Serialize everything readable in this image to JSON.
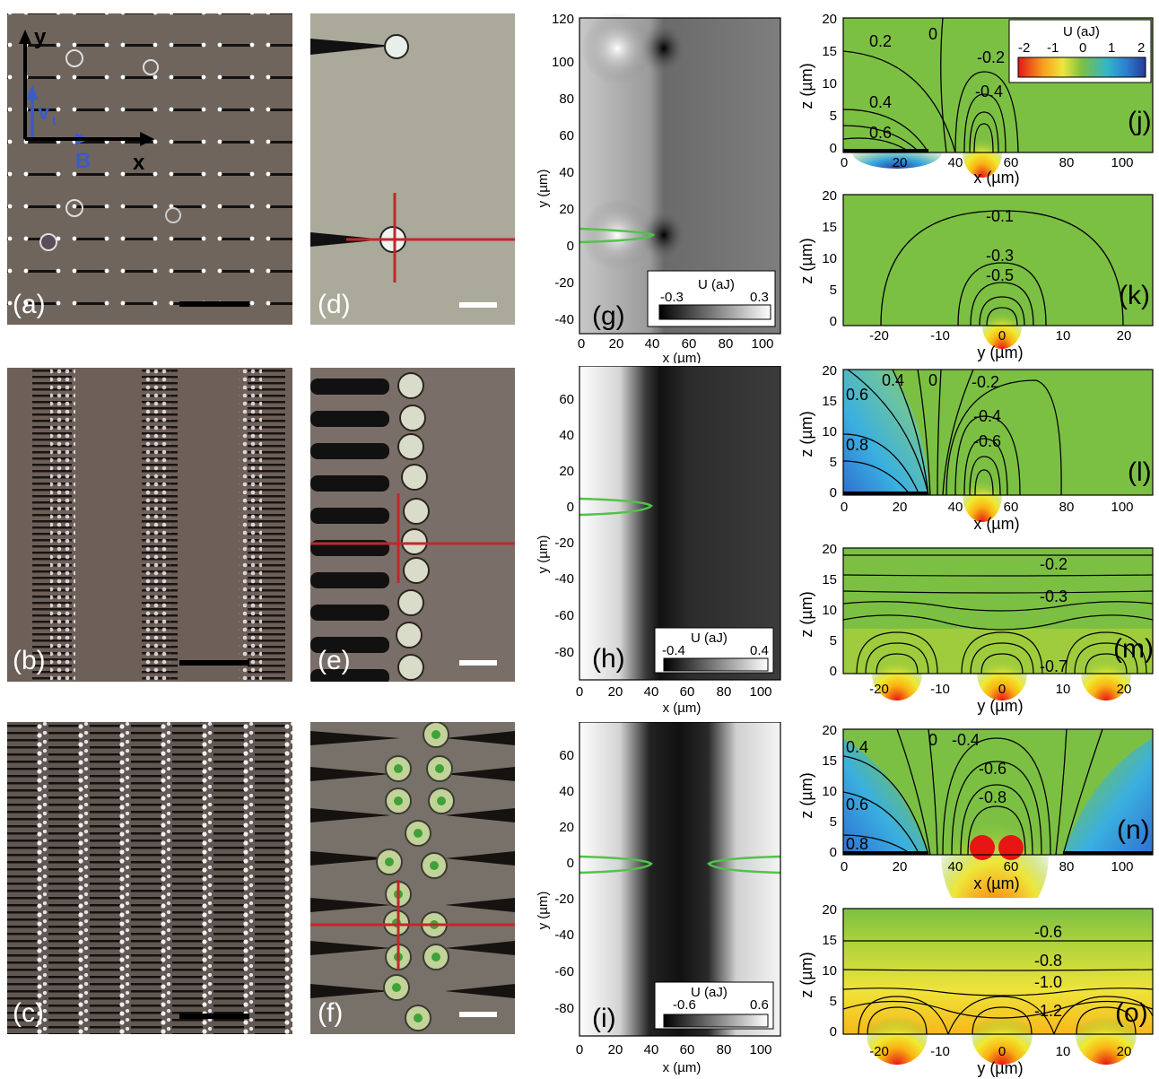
{
  "figure": {
    "panel_labels": [
      "(a)",
      "(b)",
      "(c)",
      "(d)",
      "(e)",
      "(f)",
      "(g)",
      "(h)",
      "(i)",
      "(j)",
      "(k)",
      "(l)",
      "(m)",
      "(n)",
      "(o)"
    ],
    "coord_axes": {
      "y": "y",
      "x": "x",
      "vt": "v",
      "vt_sub": "t",
      "B": "B"
    }
  },
  "chart_data": [
    {
      "id": "g",
      "type": "heatmap",
      "xlabel": "x (µm)",
      "ylabel": "y (µm)",
      "xticks": [
        "0",
        "20",
        "40",
        "60",
        "80",
        "100"
      ],
      "yticks": [
        "120",
        "100",
        "80",
        "60",
        "40",
        "20",
        "0",
        "-20",
        "-40"
      ],
      "colorbar": {
        "title": "U (aJ)",
        "min": "-0.3",
        "max": "0.3"
      }
    },
    {
      "id": "h",
      "type": "heatmap",
      "xlabel": "x (µm)",
      "ylabel": "y (µm)",
      "xticks": [
        "0",
        "20",
        "40",
        "60",
        "80",
        "100"
      ],
      "yticks": [
        "60",
        "40",
        "20",
        "0",
        "-20",
        "-40",
        "-60",
        "-80"
      ],
      "colorbar": {
        "title": "U (aJ)",
        "min": "-0.4",
        "max": "0.4"
      }
    },
    {
      "id": "i",
      "type": "heatmap",
      "xlabel": "x (µm)",
      "ylabel": "y (µm)",
      "xticks": [
        "0",
        "20",
        "40",
        "60",
        "80",
        "100"
      ],
      "yticks": [
        "60",
        "40",
        "20",
        "0",
        "-20",
        "-40",
        "-60",
        "-80"
      ],
      "colorbar": {
        "title": "U (aJ)",
        "min": "-0.6",
        "max": "0.6"
      }
    },
    {
      "id": "j",
      "type": "heatmap",
      "xlabel": "x (µm)",
      "ylabel": "z (µm)",
      "xticks": [
        "0",
        "20",
        "40",
        "60",
        "80",
        "100"
      ],
      "yticks": [
        "20",
        "15",
        "10",
        "5",
        "0"
      ],
      "contour_labels": [
        "0.2",
        "0",
        "-0.2",
        "0.4",
        "-0.4",
        "0.6"
      ],
      "colorbar": {
        "title": "U (aJ)",
        "ticks": [
          "-2",
          "-1",
          "0",
          "1",
          "2"
        ]
      }
    },
    {
      "id": "k",
      "type": "heatmap",
      "xlabel": "y (µm)",
      "ylabel": "z (µm)",
      "xticks": [
        "-20",
        "-10",
        "0",
        "10",
        "20"
      ],
      "yticks": [
        "20",
        "15",
        "10",
        "5",
        "0"
      ],
      "contour_labels": [
        "-0.1",
        "-0.3",
        "-0.5"
      ]
    },
    {
      "id": "l",
      "type": "heatmap",
      "xlabel": "x (µm)",
      "ylabel": "z (µm)",
      "xticks": [
        "0",
        "20",
        "40",
        "60",
        "80",
        "100"
      ],
      "yticks": [
        "20",
        "15",
        "10",
        "5",
        "0"
      ],
      "contour_labels": [
        "0.4",
        "0",
        "-0.2",
        "0.6",
        "-0.4",
        "-0.6",
        "0.8"
      ]
    },
    {
      "id": "m",
      "type": "heatmap",
      "xlabel": "y (µm)",
      "ylabel": "z (µm)",
      "xticks": [
        "-20",
        "-10",
        "0",
        "10",
        "20"
      ],
      "yticks": [
        "20",
        "15",
        "10",
        "5",
        "0"
      ],
      "contour_labels": [
        "-0.2",
        "-0.3",
        "-0.7"
      ]
    },
    {
      "id": "n",
      "type": "heatmap",
      "xlabel": "x (µm)",
      "ylabel": "z (µm)",
      "xticks": [
        "0",
        "20",
        "40",
        "60",
        "80",
        "100"
      ],
      "yticks": [
        "20",
        "15",
        "10",
        "5",
        "0"
      ],
      "contour_labels": [
        "0.4",
        "0",
        "-0.4",
        "-0.6",
        "-0.8",
        "0.6",
        "0.8"
      ]
    },
    {
      "id": "o",
      "type": "heatmap",
      "xlabel": "y (µm)",
      "ylabel": "z (µm)",
      "xticks": [
        "-20",
        "-10",
        "0",
        "10",
        "20"
      ],
      "yticks": [
        "20",
        "15",
        "10",
        "5",
        "0"
      ],
      "contour_labels": [
        "-0.6",
        "-0.8",
        "-1.0",
        "-1.2"
      ]
    }
  ]
}
